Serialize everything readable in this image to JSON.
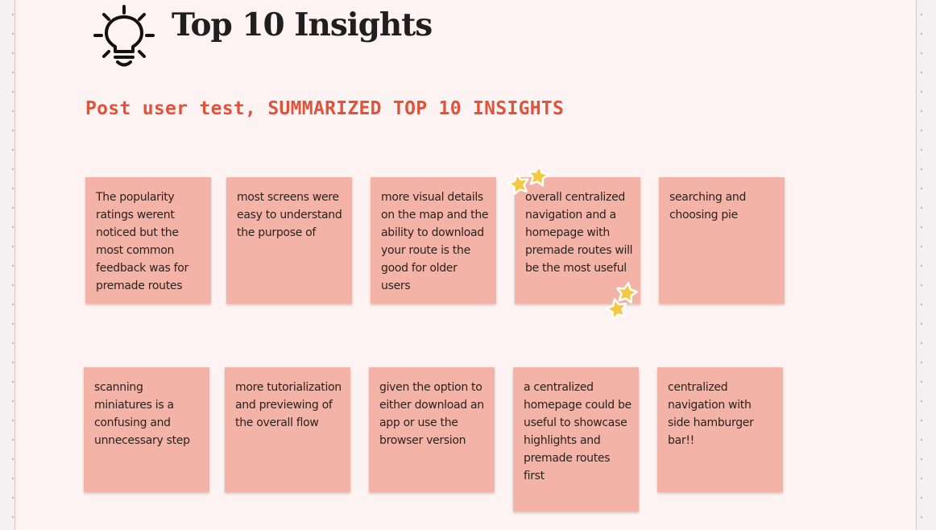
{
  "header": {
    "title": "Top 10 Insights",
    "subtitle": "Post user test, SUMMARIZED TOP 10 INSIGHTS",
    "icon": "lightbulb-icon"
  },
  "notes": [
    {
      "text": "The popularity ratings werent noticed but the most common feedback was for premade routes"
    },
    {
      "text": "most screens were easy to understand the purpose of"
    },
    {
      "text": "more visual details on the map and the ability to download your route is the good for older users"
    },
    {
      "text": "overall centralized navigation and a homepage with premade routes will be the most useful"
    },
    {
      "text": "searching and choosing pie"
    },
    {
      "text": "scanning miniatures is a confusing and unnecessary step"
    },
    {
      "text": "more tutorialization and previewing of the overall flow"
    },
    {
      "text": "given the option to either download an app or use the browser version"
    },
    {
      "text": "a centralized homepage could be useful to showcase highlights and premade routes first"
    },
    {
      "text": "centralized navigation with side hamburger bar!!"
    }
  ],
  "colors": {
    "note_fill": "#f3b3a6",
    "subtitle": "#e0533a",
    "board": "#fdf3f2",
    "star": "#f5c842"
  }
}
